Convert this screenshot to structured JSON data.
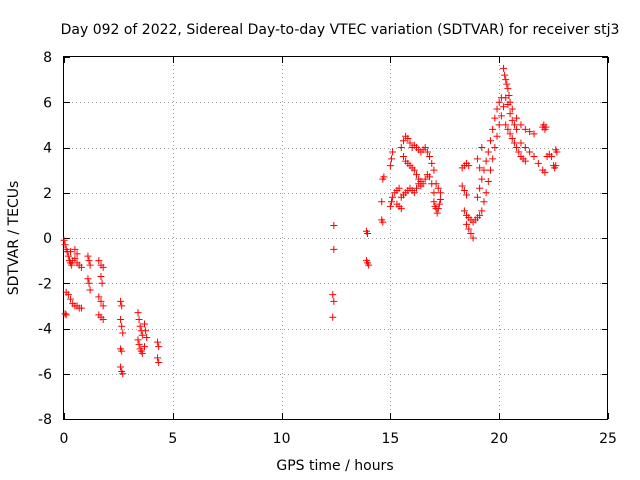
{
  "chart_data": {
    "type": "scatter",
    "title": "Day 092 of 2022, Sidereal Day-to-day VTEC variation (SDTVAR) for receiver stj3",
    "xlabel": "GPS time / hours",
    "ylabel": "SDTVAR / TECUs",
    "xlim": [
      0,
      25
    ],
    "ylim": [
      -8,
      8
    ],
    "xticks": [
      0,
      5,
      10,
      15,
      20,
      25
    ],
    "yticks": [
      -8,
      -6,
      -4,
      -2,
      0,
      2,
      4,
      6,
      8
    ],
    "xtick_labels": [
      "0",
      "5",
      "10",
      "15",
      "20",
      "25"
    ],
    "ytick_labels": [
      "-8",
      "-6",
      "-4",
      "-2",
      "0",
      "2",
      "4",
      "6",
      "8"
    ],
    "grid": true,
    "marker": "+",
    "colors": {
      "points": "#ff0000",
      "grid": "#a0a0a0",
      "axes": "#000000"
    },
    "series": [
      {
        "name": "SDTVAR",
        "points": [
          [
            0.0,
            -0.1
          ],
          [
            0.05,
            -0.3
          ],
          [
            0.1,
            -0.5
          ],
          [
            0.15,
            -0.6
          ],
          [
            0.2,
            -0.8
          ],
          [
            0.25,
            -1.0
          ],
          [
            0.3,
            -1.1
          ],
          [
            0.35,
            -1.2
          ],
          [
            0.4,
            -1.0
          ],
          [
            0.5,
            -0.9
          ],
          [
            0.6,
            -1.1
          ],
          [
            0.7,
            -1.2
          ],
          [
            0.8,
            -1.3
          ],
          [
            0.3,
            -0.6
          ],
          [
            0.5,
            -0.5
          ],
          [
            0.6,
            -0.7
          ],
          [
            0.1,
            -2.4
          ],
          [
            0.2,
            -2.5
          ],
          [
            0.3,
            -2.7
          ],
          [
            0.4,
            -2.9
          ],
          [
            0.5,
            -3.0
          ],
          [
            0.6,
            -3.0
          ],
          [
            0.7,
            -3.1
          ],
          [
            0.8,
            -3.1
          ],
          [
            0.05,
            -3.35
          ],
          [
            0.1,
            -3.4
          ],
          [
            1.1,
            -0.8
          ],
          [
            1.15,
            -1.0
          ],
          [
            1.2,
            -1.2
          ],
          [
            1.1,
            -1.8
          ],
          [
            1.15,
            -2.0
          ],
          [
            1.2,
            -2.3
          ],
          [
            1.6,
            -1.0
          ],
          [
            1.7,
            -1.2
          ],
          [
            1.8,
            -1.3
          ],
          [
            1.7,
            -1.7
          ],
          [
            1.75,
            -2.0
          ],
          [
            1.6,
            -2.6
          ],
          [
            1.7,
            -2.8
          ],
          [
            1.8,
            -3.0
          ],
          [
            1.6,
            -3.4
          ],
          [
            1.7,
            -3.5
          ],
          [
            1.8,
            -3.6
          ],
          [
            2.6,
            -2.8
          ],
          [
            2.65,
            -3.0
          ],
          [
            2.6,
            -3.6
          ],
          [
            2.65,
            -3.9
          ],
          [
            2.7,
            -4.2
          ],
          [
            2.6,
            -4.9
          ],
          [
            2.65,
            -5.0
          ],
          [
            2.6,
            -5.7
          ],
          [
            2.65,
            -5.9
          ],
          [
            2.7,
            -6.0
          ],
          [
            3.4,
            -3.3
          ],
          [
            3.45,
            -3.6
          ],
          [
            3.5,
            -3.9
          ],
          [
            3.55,
            -4.1
          ],
          [
            3.6,
            -4.3
          ],
          [
            3.4,
            -4.5
          ],
          [
            3.45,
            -4.7
          ],
          [
            3.5,
            -4.9
          ],
          [
            3.55,
            -5.0
          ],
          [
            3.6,
            -5.1
          ],
          [
            3.7,
            -3.8
          ],
          [
            3.75,
            -4.1
          ],
          [
            3.8,
            -4.4
          ],
          [
            3.7,
            -4.8
          ],
          [
            4.3,
            -4.6
          ],
          [
            4.35,
            -4.8
          ],
          [
            4.3,
            -5.3
          ],
          [
            4.35,
            -5.5
          ],
          [
            12.4,
            0.55
          ],
          [
            12.4,
            -0.5
          ],
          [
            12.35,
            -2.5
          ],
          [
            12.4,
            -2.8
          ],
          [
            12.35,
            -3.5
          ],
          [
            13.9,
            0.3
          ],
          [
            13.95,
            0.2
          ],
          [
            13.9,
            -1.0
          ],
          [
            13.95,
            -1.1
          ],
          [
            14.0,
            -1.2
          ],
          [
            14.6,
            0.8
          ],
          [
            14.65,
            0.7
          ],
          [
            14.6,
            1.6
          ],
          [
            14.65,
            2.6
          ],
          [
            14.7,
            2.7
          ],
          [
            15.0,
            1.4
          ],
          [
            15.05,
            1.6
          ],
          [
            15.1,
            1.8
          ],
          [
            15.2,
            2.0
          ],
          [
            15.3,
            2.1
          ],
          [
            15.4,
            2.2
          ],
          [
            15.0,
            3.2
          ],
          [
            15.05,
            3.5
          ],
          [
            15.1,
            3.8
          ],
          [
            15.5,
            4.0
          ],
          [
            15.6,
            4.3
          ],
          [
            15.7,
            4.5
          ],
          [
            15.8,
            4.4
          ],
          [
            15.9,
            4.2
          ],
          [
            16.0,
            4.0
          ],
          [
            16.1,
            4.1
          ],
          [
            16.2,
            4.0
          ],
          [
            16.3,
            3.9
          ],
          [
            16.4,
            3.8
          ],
          [
            16.5,
            3.9
          ],
          [
            16.6,
            4.0
          ],
          [
            16.7,
            3.8
          ],
          [
            16.8,
            3.6
          ],
          [
            16.9,
            3.3
          ],
          [
            17.0,
            3.0
          ],
          [
            15.6,
            3.6
          ],
          [
            15.7,
            3.4
          ],
          [
            15.8,
            3.3
          ],
          [
            15.9,
            3.2
          ],
          [
            16.0,
            3.1
          ],
          [
            16.1,
            3.0
          ],
          [
            16.2,
            2.8
          ],
          [
            16.3,
            2.6
          ],
          [
            16.4,
            2.5
          ],
          [
            16.5,
            2.4
          ],
          [
            16.6,
            2.6
          ],
          [
            16.7,
            2.8
          ],
          [
            16.8,
            2.7
          ],
          [
            16.9,
            2.4
          ],
          [
            17.0,
            2.0
          ],
          [
            15.5,
            1.8
          ],
          [
            15.6,
            1.9
          ],
          [
            15.7,
            2.0
          ],
          [
            15.8,
            2.1
          ],
          [
            15.9,
            2.2
          ],
          [
            16.0,
            2.1
          ],
          [
            16.1,
            2.0
          ],
          [
            16.2,
            2.2
          ],
          [
            16.3,
            2.4
          ],
          [
            16.4,
            2.3
          ],
          [
            15.3,
            1.5
          ],
          [
            15.4,
            1.4
          ],
          [
            15.5,
            1.3
          ],
          [
            17.0,
            1.6
          ],
          [
            17.05,
            1.4
          ],
          [
            17.1,
            1.3
          ],
          [
            17.15,
            1.1
          ],
          [
            17.2,
            1.3
          ],
          [
            17.25,
            1.5
          ],
          [
            17.3,
            1.7
          ],
          [
            17.1,
            2.4
          ],
          [
            17.2,
            2.2
          ],
          [
            17.3,
            2.0
          ],
          [
            18.3,
            3.1
          ],
          [
            18.4,
            3.2
          ],
          [
            18.5,
            3.3
          ],
          [
            18.6,
            3.2
          ],
          [
            18.3,
            2.3
          ],
          [
            18.4,
            2.1
          ],
          [
            18.5,
            1.9
          ],
          [
            18.4,
            1.2
          ],
          [
            18.5,
            1.0
          ],
          [
            18.6,
            0.9
          ],
          [
            18.7,
            0.8
          ],
          [
            18.8,
            0.7
          ],
          [
            18.9,
            0.8
          ],
          [
            19.0,
            0.9
          ],
          [
            19.1,
            1.0
          ],
          [
            18.5,
            0.6
          ],
          [
            18.6,
            0.4
          ],
          [
            18.7,
            0.2
          ],
          [
            18.8,
            0.0
          ],
          [
            19.2,
            1.2
          ],
          [
            19.3,
            1.6
          ],
          [
            19.4,
            2.0
          ],
          [
            19.5,
            2.5
          ],
          [
            19.6,
            3.0
          ],
          [
            19.7,
            3.5
          ],
          [
            19.8,
            4.0
          ],
          [
            19.9,
            4.5
          ],
          [
            20.0,
            5.0
          ],
          [
            20.1,
            5.4
          ],
          [
            20.2,
            5.8
          ],
          [
            19.0,
            1.8
          ],
          [
            19.1,
            2.2
          ],
          [
            19.2,
            2.6
          ],
          [
            19.3,
            3.0
          ],
          [
            19.4,
            3.4
          ],
          [
            19.5,
            3.8
          ],
          [
            19.6,
            4.3
          ],
          [
            19.7,
            4.8
          ],
          [
            19.8,
            5.3
          ],
          [
            19.9,
            5.7
          ],
          [
            20.0,
            6.0
          ],
          [
            20.1,
            6.2
          ],
          [
            19.1,
            3.1
          ],
          [
            19.0,
            3.5
          ],
          [
            19.2,
            4.0
          ],
          [
            20.2,
            7.5
          ],
          [
            20.25,
            7.2
          ],
          [
            20.3,
            7.0
          ],
          [
            20.35,
            6.8
          ],
          [
            20.4,
            6.6
          ],
          [
            20.45,
            6.3
          ],
          [
            20.5,
            6.0
          ],
          [
            20.3,
            6.2
          ],
          [
            20.4,
            5.9
          ],
          [
            20.5,
            5.5
          ],
          [
            20.6,
            5.2
          ],
          [
            20.7,
            5.0
          ],
          [
            20.8,
            4.8
          ],
          [
            20.3,
            5.0
          ],
          [
            20.4,
            4.8
          ],
          [
            20.5,
            4.6
          ],
          [
            20.6,
            4.4
          ],
          [
            20.7,
            4.2
          ],
          [
            20.8,
            4.0
          ],
          [
            20.9,
            3.8
          ],
          [
            21.0,
            3.6
          ],
          [
            21.1,
            3.5
          ],
          [
            21.2,
            3.4
          ],
          [
            20.6,
            5.7
          ],
          [
            20.8,
            5.3
          ],
          [
            21.0,
            5.0
          ],
          [
            21.2,
            4.8
          ],
          [
            21.4,
            4.7
          ],
          [
            21.6,
            4.6
          ],
          [
            21.0,
            4.2
          ],
          [
            21.2,
            4.0
          ],
          [
            21.4,
            3.8
          ],
          [
            21.6,
            3.6
          ],
          [
            21.8,
            3.3
          ],
          [
            22.0,
            3.0
          ],
          [
            22.1,
            2.9
          ],
          [
            22.0,
            4.9
          ],
          [
            22.05,
            5.0
          ],
          [
            22.1,
            4.8
          ],
          [
            22.15,
            4.9
          ],
          [
            22.2,
            3.6
          ],
          [
            22.3,
            3.7
          ],
          [
            22.4,
            3.6
          ],
          [
            22.5,
            3.2
          ],
          [
            22.55,
            3.1
          ],
          [
            22.6,
            3.2
          ],
          [
            22.6,
            3.9
          ],
          [
            22.65,
            3.8
          ]
        ]
      }
    ]
  }
}
